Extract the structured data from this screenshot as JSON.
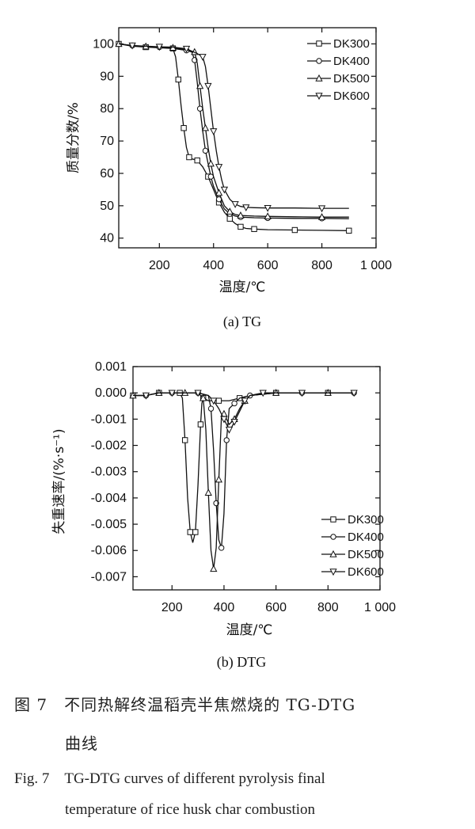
{
  "chart_data": [
    {
      "type": "line",
      "subtitle": "(a) TG",
      "xlabel": "温度/℃",
      "ylabel": "质量分数/%",
      "xlim": [
        50,
        1000
      ],
      "ylim": [
        37,
        105
      ],
      "xticks": [
        "200",
        "400",
        "600",
        "800",
        "1 000"
      ],
      "yticks": [
        "40",
        "50",
        "60",
        "70",
        "80",
        "90",
        "100"
      ],
      "legend_position": "top-right",
      "series": [
        {
          "name": "DK300",
          "marker": "square",
          "x": [
            50,
            100,
            150,
            200,
            250,
            260,
            270,
            280,
            290,
            300,
            310,
            320,
            340,
            360,
            380,
            400,
            420,
            440,
            460,
            480,
            500,
            520,
            550,
            600,
            700,
            800,
            900
          ],
          "y": [
            100,
            99.3,
            99,
            98.8,
            98.6,
            96,
            89,
            81,
            74,
            68,
            65,
            64.5,
            64,
            62,
            59,
            55,
            51,
            48,
            46,
            44.5,
            43.5,
            43,
            42.8,
            42.6,
            42.5,
            42.4,
            42.3
          ]
        },
        {
          "name": "DK400",
          "marker": "circle",
          "x": [
            50,
            100,
            150,
            200,
            250,
            300,
            320,
            330,
            340,
            350,
            360,
            370,
            380,
            390,
            400,
            420,
            440,
            460,
            480,
            500,
            550,
            600,
            700,
            800,
            900
          ],
          "y": [
            100,
            99.5,
            99.2,
            99,
            98.6,
            98,
            97.5,
            95,
            88,
            80,
            73,
            67,
            63,
            59,
            56,
            52,
            49,
            47.5,
            46.8,
            46.5,
            46.3,
            46.2,
            46.1,
            46.1,
            46
          ]
        },
        {
          "name": "DK500",
          "marker": "triangle-up",
          "x": [
            50,
            100,
            150,
            200,
            250,
            300,
            330,
            340,
            350,
            360,
            370,
            380,
            390,
            400,
            420,
            440,
            460,
            480,
            500,
            550,
            600,
            700,
            800,
            900
          ],
          "y": [
            100,
            99.4,
            99.2,
            99,
            98.8,
            98.2,
            97.5,
            94,
            87,
            80,
            74,
            68,
            63,
            59,
            54,
            50,
            48.2,
            47.3,
            47,
            46.8,
            46.7,
            46.6,
            46.5,
            46.5
          ]
        },
        {
          "name": "DK600",
          "marker": "triangle-down",
          "x": [
            50,
            100,
            150,
            200,
            250,
            300,
            340,
            360,
            370,
            380,
            390,
            400,
            410,
            420,
            430,
            440,
            460,
            480,
            500,
            520,
            550,
            600,
            700,
            800,
            900
          ],
          "y": [
            100,
            99.5,
            99.3,
            99.1,
            99,
            98.5,
            97,
            96,
            93,
            87,
            80,
            73,
            67,
            62,
            58,
            55,
            52,
            50.5,
            49.8,
            49.5,
            49.4,
            49.3,
            49.3,
            49.2,
            49.2
          ]
        }
      ]
    },
    {
      "type": "line",
      "subtitle": "(b) DTG",
      "xlabel": "温度/℃",
      "ylabel": "失重速率/(%·s⁻¹)",
      "xlim": [
        50,
        1000
      ],
      "ylim": [
        -0.0075,
        0.001
      ],
      "xticks": [
        "200",
        "400",
        "600",
        "800",
        "1 000"
      ],
      "yticks": [
        "0.001",
        "0.000",
        "-0.001",
        "-0.002",
        "-0.003",
        "-0.004",
        "-0.005",
        "-0.006",
        "-0.007"
      ],
      "legend_position": "bottom-right",
      "series": [
        {
          "name": "DK300",
          "marker": "square",
          "x": [
            50,
            100,
            150,
            200,
            230,
            240,
            250,
            260,
            270,
            280,
            290,
            300,
            310,
            315,
            320,
            340,
            380,
            420,
            460,
            500,
            600,
            700,
            800,
            900
          ],
          "y": [
            -0.0001,
            -0.0001,
            0,
            0,
            0,
            -0.0002,
            -0.0018,
            -0.004,
            -0.0053,
            -0.0057,
            -0.0053,
            -0.0035,
            -0.0012,
            -0.0004,
            -0.0002,
            -0.0003,
            -0.0003,
            -0.0003,
            -0.0002,
            -0.0001,
            0,
            0,
            0,
            0
          ]
        },
        {
          "name": "DK400",
          "marker": "circle",
          "x": [
            50,
            100,
            150,
            200,
            250,
            300,
            340,
            350,
            360,
            370,
            380,
            390,
            400,
            410,
            420,
            440,
            460,
            500,
            600,
            700,
            800,
            900
          ],
          "y": [
            -0.0001,
            -0.0001,
            0,
            0,
            0,
            0,
            -0.0001,
            -0.0006,
            -0.0022,
            -0.0042,
            -0.0056,
            -0.0059,
            -0.0046,
            -0.0018,
            -0.0006,
            -0.0004,
            -0.0002,
            -0.0001,
            0,
            0,
            0,
            0
          ]
        },
        {
          "name": "DK500",
          "marker": "triangle-up",
          "x": [
            50,
            100,
            150,
            200,
            250,
            300,
            320,
            330,
            340,
            350,
            360,
            370,
            380,
            390,
            400,
            420,
            440,
            460,
            480,
            500,
            600,
            700,
            800,
            900
          ],
          "y": [
            -0.0001,
            -0.0001,
            0,
            0,
            0,
            0,
            -0.0002,
            -0.0014,
            -0.0038,
            -0.006,
            -0.0067,
            -0.0059,
            -0.0033,
            -0.0009,
            -0.0008,
            -0.0012,
            -0.001,
            -0.0006,
            -0.0003,
            -0.0001,
            0,
            0,
            0,
            0
          ]
        },
        {
          "name": "DK600",
          "marker": "triangle-down",
          "x": [
            50,
            100,
            150,
            200,
            250,
            300,
            340,
            360,
            380,
            400,
            410,
            420,
            430,
            440,
            460,
            480,
            500,
            550,
            600,
            700,
            800,
            900
          ],
          "y": [
            -0.0001,
            -0.0001,
            0,
            0,
            0,
            0,
            -0.0001,
            -0.0003,
            -0.0006,
            -0.001,
            -0.0012,
            -0.0014,
            -0.0013,
            -0.0011,
            -0.0007,
            -0.0003,
            -0.0001,
            0,
            0,
            0,
            0,
            0
          ]
        }
      ]
    }
  ],
  "caption": {
    "zh_line1": "图 7　不同热解终温稻壳半焦燃烧的 TG-DTG",
    "zh_line2": "曲线",
    "en_line1": "Fig. 7　TG-DTG curves of different pyrolysis final",
    "en_line2": "temperature of rice husk char combustion"
  }
}
